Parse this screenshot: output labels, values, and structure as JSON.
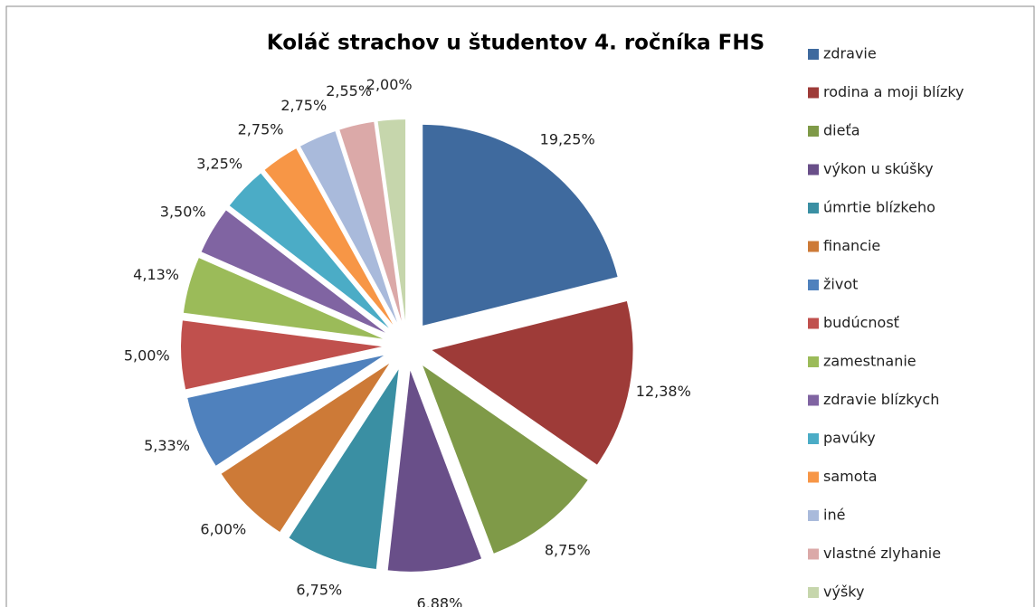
{
  "chart_data": {
    "type": "pie",
    "title": "Koláč strachov u študentov 4. ročníka FHS",
    "categories": [
      "zdravie",
      "rodina a moji blízky",
      "dieťa",
      "výkon u skúšky",
      "úmrtie blízkeho",
      "financie",
      "život",
      "budúcnosť",
      "zamestnanie",
      "zdravie blízkych",
      "pavúky",
      "samota",
      "iné",
      "vlastné zlyhanie",
      "výšky"
    ],
    "values": [
      19.25,
      12.38,
      8.75,
      6.88,
      6.75,
      6.0,
      5.33,
      5.0,
      4.13,
      3.5,
      3.25,
      2.75,
      2.75,
      2.55,
      2.0
    ],
    "value_labels": [
      "19,25%",
      "12,38%",
      "8,75%",
      "6,88%",
      "6,75%",
      "6,00%",
      "5,33%",
      "5,00%",
      "4,13%",
      "3,50%",
      "3,25%",
      "2,75%",
      "2,75%",
      "2,55%",
      "2,00%"
    ],
    "colors": [
      "#3F6A9E",
      "#9E3B38",
      "#7F9A48",
      "#694F89",
      "#3A8FA3",
      "#CD7A37",
      "#4F81BD",
      "#C0504D",
      "#9BBB59",
      "#8064A2",
      "#4BACC6",
      "#F79646",
      "#A9BADB",
      "#DBA9A8",
      "#C6D6AC"
    ],
    "legend": "right"
  }
}
